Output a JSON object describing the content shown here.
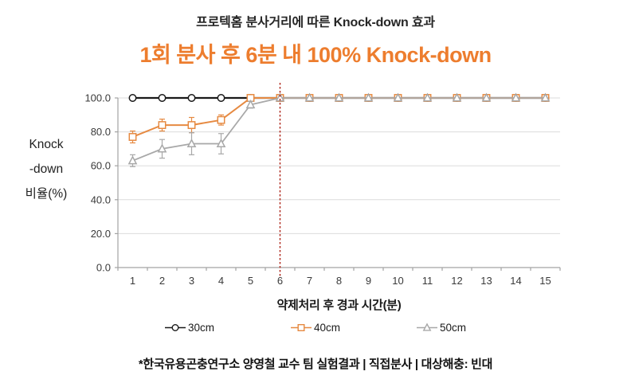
{
  "header": {
    "title": "프로텍홈 분사거리에 따른 Knock-down 효과",
    "subtitle": "1회 분사 후 6분 내 100% Knock-down",
    "subtitle_color": "#ED7D2E"
  },
  "footer": {
    "note": "*한국유용곤충연구소 양영철 교수 팀 실험결과 | 직접분사 | 대상해충: 빈대"
  },
  "chart_data": {
    "type": "line",
    "title": "프로텍홈 분사거리에 따른 Knock-down 효과",
    "xlabel": "약제처리 후 경과 시간(분)",
    "ylabel": "Knock-down 비율(%)",
    "ylabel_lines": [
      "Knock",
      "-down",
      "비율(%)"
    ],
    "x": [
      1,
      2,
      3,
      4,
      5,
      6,
      7,
      8,
      9,
      10,
      11,
      12,
      13,
      14,
      15
    ],
    "ylim": [
      0,
      100
    ],
    "yticks": [
      0,
      20,
      40,
      60,
      80,
      100
    ],
    "ytick_labels": [
      "0.0",
      "20.0",
      "40.0",
      "60.0",
      "80.0",
      "100.0"
    ],
    "grid": true,
    "legend_position": "bottom",
    "annotation_vline": {
      "x": 6,
      "style": "dashed",
      "color": "#B02B20"
    },
    "series": [
      {
        "name": "30cm",
        "marker": "circle",
        "color": "#1A1A1A",
        "width": 2.2,
        "values": [
          100,
          100,
          100,
          100,
          100,
          100,
          100,
          100,
          100,
          100,
          100,
          100,
          100,
          100,
          100
        ],
        "errors": [
          0,
          0,
          0,
          0,
          0,
          0,
          0,
          0,
          0,
          0,
          0,
          0,
          0,
          0,
          0
        ]
      },
      {
        "name": "40cm",
        "marker": "square",
        "color": "#E68A42",
        "width": 2,
        "values": [
          77,
          84,
          84,
          87,
          100,
          100,
          100,
          100,
          100,
          100,
          100,
          100,
          100,
          100,
          100
        ],
        "errors": [
          3.5,
          3.5,
          4.5,
          3,
          0,
          0,
          0,
          0,
          0,
          0,
          0,
          0,
          0,
          0,
          0
        ]
      },
      {
        "name": "50cm",
        "marker": "triangle",
        "color": "#A8A8A8",
        "width": 1.8,
        "values": [
          63,
          70,
          73,
          73,
          96,
          100,
          100,
          100,
          100,
          100,
          100,
          100,
          100,
          100,
          100
        ],
        "errors": [
          3.5,
          5.5,
          6.5,
          6,
          2,
          0,
          0,
          0,
          0,
          0,
          0,
          0,
          0,
          0,
          0
        ]
      }
    ]
  }
}
